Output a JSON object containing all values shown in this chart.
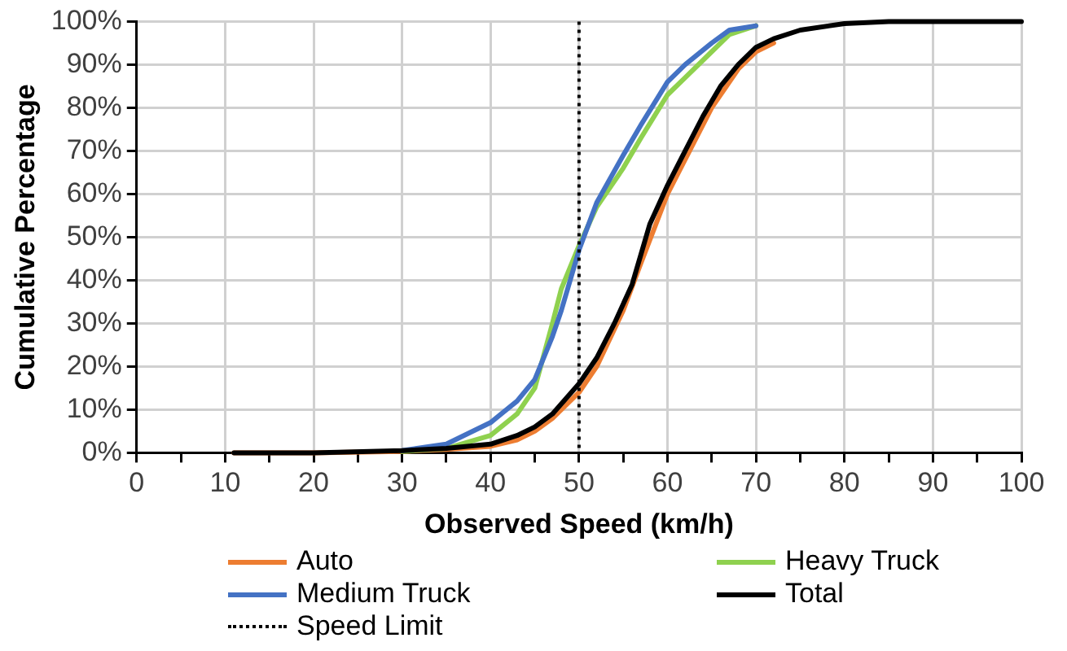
{
  "chart_data": {
    "type": "line",
    "xlabel": "Observed Speed (km/h)",
    "ylabel": "Cumulative Percentage",
    "xlim": [
      0,
      100
    ],
    "ylim": [
      0,
      100
    ],
    "xticks": [
      0,
      {
        "value": 5,
        "label": null
      },
      10,
      {
        "value": 15,
        "label": null
      },
      20,
      {
        "value": 25,
        "label": null
      },
      30,
      {
        "value": 35,
        "label": null
      },
      40,
      {
        "value": 45,
        "label": null
      },
      50,
      {
        "value": 55,
        "label": null
      },
      60,
      {
        "value": 65,
        "label": null
      },
      70,
      {
        "value": 75,
        "label": null
      },
      80,
      {
        "value": 85,
        "label": null
      },
      90,
      {
        "value": 95,
        "label": null
      },
      100
    ],
    "yticks": [
      {
        "value": 0,
        "label": "0%"
      },
      {
        "value": 10,
        "label": "10%"
      },
      {
        "value": 20,
        "label": "20%"
      },
      {
        "value": 30,
        "label": "30%"
      },
      {
        "value": 40,
        "label": "40%"
      },
      {
        "value": 50,
        "label": "50%"
      },
      {
        "value": 60,
        "label": "60%"
      },
      {
        "value": 70,
        "label": "70%"
      },
      {
        "value": 80,
        "label": "80%"
      },
      {
        "value": 90,
        "label": "90%"
      },
      {
        "value": 100,
        "label": "100%"
      }
    ],
    "grid": true,
    "legend": "bottom",
    "marker": "none",
    "line_style": "solid",
    "series": [
      {
        "name": "Auto",
        "color": "#ed7d31",
        "x": [
          11,
          20,
          30,
          35,
          40,
          43,
          45,
          47,
          50,
          52,
          55,
          57,
          60,
          62,
          65,
          68,
          70,
          72
        ],
        "values": [
          0,
          0,
          0.3,
          0.8,
          1.5,
          3,
          5,
          8,
          14,
          20,
          33,
          44,
          60,
          68,
          80,
          89,
          93,
          95
        ]
      },
      {
        "name": "Heavy Truck",
        "color": "#8fd14f",
        "x": [
          30,
          35,
          40,
          43,
          45,
          47,
          48,
          50,
          52,
          55,
          57,
          60,
          62,
          65,
          67,
          70
        ],
        "values": [
          0.3,
          1,
          4,
          9,
          15,
          30,
          38,
          48,
          57,
          66,
          73,
          83,
          87,
          93,
          97,
          99
        ]
      },
      {
        "name": "Medium Truck",
        "color": "#4472c4",
        "x": [
          30,
          35,
          40,
          43,
          45,
          47,
          48,
          50,
          52,
          55,
          57,
          60,
          62,
          65,
          67,
          70
        ],
        "values": [
          0.5,
          2,
          7,
          12,
          17,
          27,
          33,
          47,
          58,
          69,
          76,
          86,
          90,
          95,
          98,
          99
        ]
      },
      {
        "name": "Total",
        "color": "#000000",
        "x": [
          11,
          20,
          30,
          35,
          40,
          43,
          45,
          47,
          50,
          52,
          54,
          56,
          57,
          58,
          60,
          62,
          64,
          66,
          68,
          70,
          72,
          75,
          80,
          85,
          100
        ],
        "values": [
          0,
          0,
          0.5,
          1,
          2,
          4,
          6,
          9,
          16,
          22,
          30,
          39,
          46,
          53,
          62,
          70,
          78,
          85,
          90,
          94,
          96,
          98,
          99.5,
          100,
          100
        ]
      }
    ],
    "ref_lines": [
      {
        "axis": "x",
        "value": 50,
        "label": "Speed Limit",
        "color": "#000000",
        "line_style": "dotted"
      }
    ]
  }
}
